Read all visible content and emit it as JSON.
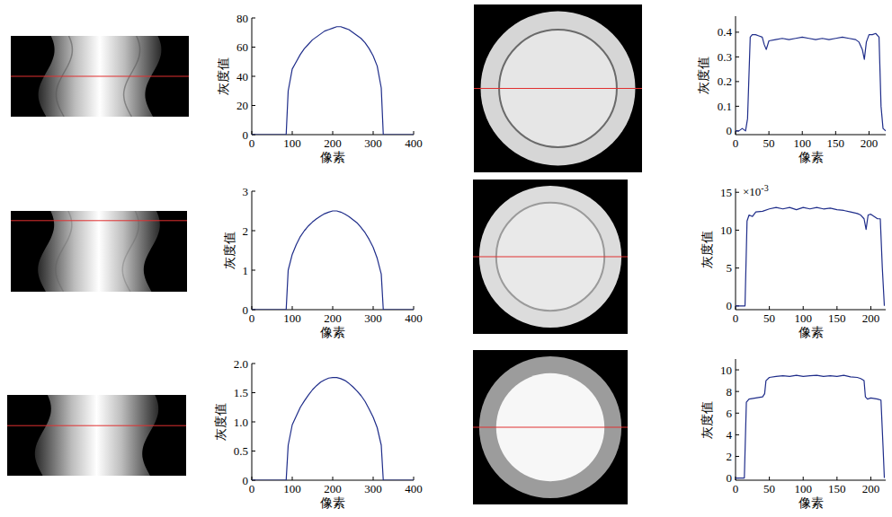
{
  "chart_data": [
    {
      "type": "line",
      "x_label": "像素",
      "y_label": "灰度值",
      "color": "#1f2d8a",
      "grid": false,
      "x": [
        0,
        20,
        40,
        60,
        80,
        85,
        90,
        100,
        110,
        120,
        130,
        140,
        150,
        160,
        170,
        180,
        190,
        200,
        210,
        220,
        230,
        240,
        250,
        260,
        270,
        280,
        290,
        300,
        310,
        320,
        325,
        340,
        360,
        380,
        400
      ],
      "values": [
        0,
        0,
        0,
        0,
        0,
        0,
        30,
        45,
        50,
        55,
        59,
        62,
        65,
        67,
        69,
        71,
        72,
        73,
        74,
        74,
        73,
        72,
        70,
        68,
        66,
        63,
        59,
        54,
        47,
        32,
        0,
        0,
        0,
        0,
        0
      ],
      "xlim": [
        0,
        400
      ],
      "ylim": [
        0,
        80
      ],
      "xticks": [
        0,
        100,
        200,
        300,
        400
      ],
      "yticks": [
        0,
        20,
        40,
        60,
        80
      ]
    },
    {
      "type": "line",
      "x_label": "像素",
      "y_label": "灰度值",
      "color": "#1f2d8a",
      "grid": false,
      "x": [
        0,
        5,
        10,
        15,
        18,
        22,
        25,
        30,
        35,
        40,
        43,
        46,
        50,
        60,
        70,
        80,
        90,
        100,
        110,
        120,
        130,
        140,
        150,
        160,
        170,
        180,
        185,
        190,
        193,
        196,
        200,
        205,
        210,
        215,
        218,
        221,
        225
      ],
      "values": [
        0,
        0,
        0.01,
        0,
        0.05,
        0.38,
        0.39,
        0.39,
        0.385,
        0.38,
        0.35,
        0.33,
        0.365,
        0.37,
        0.375,
        0.37,
        0.375,
        0.38,
        0.375,
        0.37,
        0.375,
        0.37,
        0.375,
        0.38,
        0.375,
        0.37,
        0.36,
        0.33,
        0.29,
        0.36,
        0.39,
        0.39,
        0.395,
        0.38,
        0.1,
        0.01,
        0
      ],
      "xlim": [
        0,
        225
      ],
      "ylim": [
        -0.015,
        0.465
      ],
      "xticks": [
        0,
        50,
        100,
        150,
        200
      ],
      "yticks": [
        0,
        0.1,
        0.2,
        0.3,
        0.4
      ]
    },
    {
      "type": "line",
      "x_label": "像素",
      "y_label": "灰度值",
      "color": "#1f2d8a",
      "grid": false,
      "x": [
        0,
        20,
        40,
        60,
        80,
        85,
        90,
        100,
        110,
        120,
        130,
        140,
        150,
        160,
        170,
        180,
        190,
        200,
        210,
        220,
        230,
        240,
        250,
        260,
        270,
        280,
        290,
        300,
        310,
        320,
        325,
        340,
        360,
        380,
        400
      ],
      "values": [
        0,
        0,
        0,
        0,
        0,
        0,
        1.0,
        1.4,
        1.65,
        1.85,
        2.0,
        2.12,
        2.22,
        2.3,
        2.37,
        2.43,
        2.47,
        2.5,
        2.5,
        2.47,
        2.42,
        2.36,
        2.28,
        2.2,
        2.08,
        1.95,
        1.78,
        1.58,
        1.3,
        0.9,
        0,
        0,
        0,
        0,
        0
      ],
      "xlim": [
        0,
        400
      ],
      "ylim": [
        0,
        3
      ],
      "xticks": [
        0,
        100,
        200,
        300,
        400
      ],
      "yticks": [
        0,
        1,
        2,
        3
      ]
    },
    {
      "type": "line",
      "x_label": "像素",
      "y_label": "灰度值",
      "color": "#1f2d8a",
      "grid": false,
      "annotations": [
        {
          "text": "×10",
          "superscript": "-3"
        }
      ],
      "x": [
        0,
        5,
        10,
        14,
        17,
        20,
        25,
        30,
        40,
        50,
        60,
        70,
        80,
        90,
        100,
        110,
        120,
        130,
        140,
        150,
        160,
        170,
        180,
        185,
        190,
        193,
        196,
        200,
        205,
        210,
        214,
        217,
        220
      ],
      "values": [
        0,
        0,
        0,
        0,
        0.0112,
        0.012,
        0.0118,
        0.0124,
        0.0125,
        0.0128,
        0.013,
        0.0128,
        0.013,
        0.0127,
        0.013,
        0.0128,
        0.013,
        0.0128,
        0.0129,
        0.0127,
        0.0126,
        0.0124,
        0.0122,
        0.012,
        0.0115,
        0.0101,
        0.012,
        0.0121,
        0.0118,
        0.0115,
        0.0115,
        0.005,
        0
      ],
      "xlim": [
        0,
        222
      ],
      "ylim": [
        -0.0005,
        0.0155
      ],
      "xticks": [
        0,
        50,
        100,
        150,
        200
      ],
      "yticks": [
        0,
        {
          "value": 0.005,
          "label": "5"
        },
        {
          "value": 0.01,
          "label": "10"
        },
        {
          "value": 0.015,
          "label": "15"
        }
      ]
    },
    {
      "type": "line",
      "x_label": "像素",
      "y_label": "灰度值",
      "color": "#1f2d8a",
      "grid": false,
      "x": [
        0,
        20,
        40,
        60,
        80,
        85,
        90,
        100,
        110,
        120,
        130,
        140,
        150,
        160,
        170,
        180,
        190,
        200,
        210,
        220,
        230,
        240,
        250,
        260,
        270,
        280,
        290,
        300,
        310,
        320,
        325,
        340,
        360,
        380,
        400
      ],
      "values": [
        0,
        0,
        0,
        0,
        0,
        0,
        0.6,
        0.95,
        1.1,
        1.25,
        1.36,
        1.46,
        1.55,
        1.62,
        1.68,
        1.72,
        1.75,
        1.76,
        1.76,
        1.74,
        1.71,
        1.66,
        1.6,
        1.53,
        1.45,
        1.35,
        1.22,
        1.08,
        0.9,
        0.6,
        0,
        0,
        0,
        0,
        0
      ],
      "xlim": [
        0,
        400
      ],
      "ylim": [
        0,
        2
      ],
      "xticks": [
        0,
        100,
        200,
        300,
        400
      ],
      "yticks": [
        0,
        0.5,
        {
          "value": 1,
          "label": "1.0"
        },
        1.5,
        {
          "value": 2,
          "label": "2.0"
        }
      ]
    },
    {
      "type": "line",
      "x_label": "像素",
      "y_label": "灰度值",
      "color": "#1f2d8a",
      "grid": false,
      "x": [
        0,
        10,
        13,
        16,
        20,
        30,
        40,
        43,
        45,
        50,
        60,
        70,
        80,
        90,
        100,
        110,
        120,
        130,
        140,
        150,
        160,
        170,
        180,
        185,
        190,
        192,
        195,
        200,
        210,
        215,
        218,
        220
      ],
      "values": [
        0,
        0,
        0,
        7.0,
        7.3,
        7.4,
        7.5,
        7.8,
        9.0,
        9.3,
        9.4,
        9.45,
        9.4,
        9.5,
        9.4,
        9.45,
        9.5,
        9.4,
        9.45,
        9.4,
        9.5,
        9.35,
        9.3,
        9.2,
        9.0,
        7.5,
        7.3,
        7.4,
        7.3,
        7.2,
        3,
        0
      ],
      "xlim": [
        0,
        222
      ],
      "ylim": [
        -0.2,
        11
      ],
      "xticks": [
        0,
        50,
        100,
        150,
        200
      ],
      "yticks": [
        0,
        2,
        4,
        6,
        8,
        10
      ]
    }
  ]
}
